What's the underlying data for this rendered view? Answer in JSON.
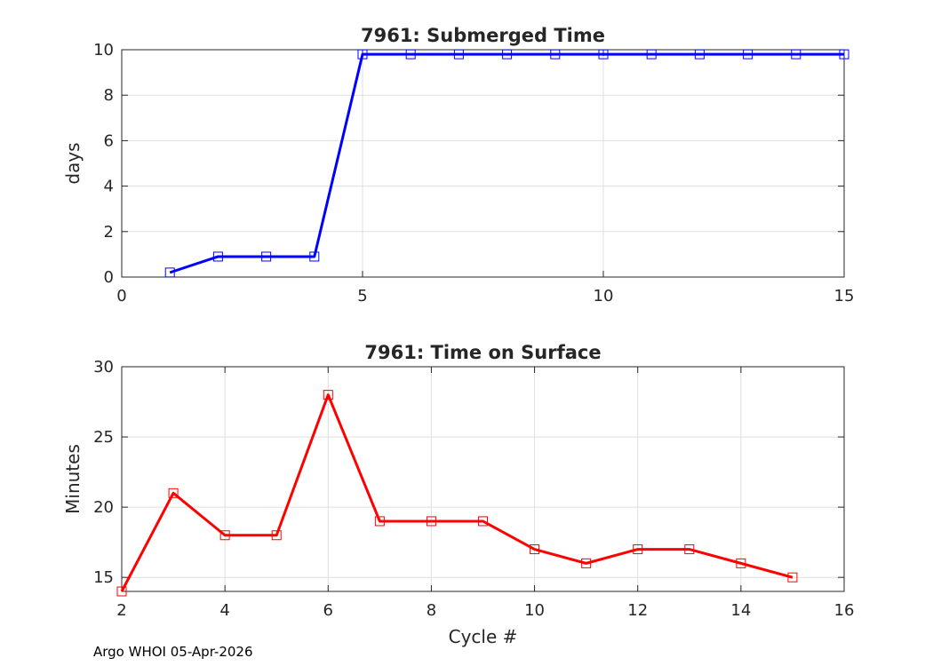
{
  "footer": "Argo WHOI 05-Apr-2026",
  "chart_data": [
    {
      "type": "line",
      "title": "7961: Submerged Time",
      "xlabel": "",
      "ylabel": "days",
      "xlim": [
        0,
        15
      ],
      "ylim": [
        0,
        10
      ],
      "xticks": [
        0,
        5,
        10,
        15
      ],
      "yticks": [
        0,
        2,
        4,
        6,
        8,
        10
      ],
      "grid": true,
      "marker": "square",
      "color": "#0000ff",
      "x": [
        1,
        2,
        3,
        4,
        5,
        6,
        7,
        8,
        9,
        10,
        11,
        12,
        13,
        14,
        15
      ],
      "y": [
        0.2,
        0.9,
        0.9,
        0.9,
        9.8,
        9.8,
        9.8,
        9.8,
        9.8,
        9.8,
        9.8,
        9.8,
        9.8,
        9.8,
        9.8
      ]
    },
    {
      "type": "line",
      "title": "7961: Time on Surface",
      "xlabel": "Cycle #",
      "ylabel": "Minutes",
      "xlim": [
        2,
        16
      ],
      "ylim": [
        14,
        30
      ],
      "xticks": [
        2,
        4,
        6,
        8,
        10,
        12,
        14,
        16
      ],
      "yticks": [
        15,
        20,
        25,
        30
      ],
      "grid": true,
      "marker": "square",
      "color": "#ff0000",
      "x": [
        2,
        3,
        4,
        5,
        6,
        7,
        8,
        9,
        10,
        11,
        12,
        13,
        14,
        15
      ],
      "y": [
        14,
        21,
        18,
        18,
        28,
        19,
        19,
        19,
        17,
        16,
        17,
        17,
        16,
        15
      ]
    }
  ]
}
